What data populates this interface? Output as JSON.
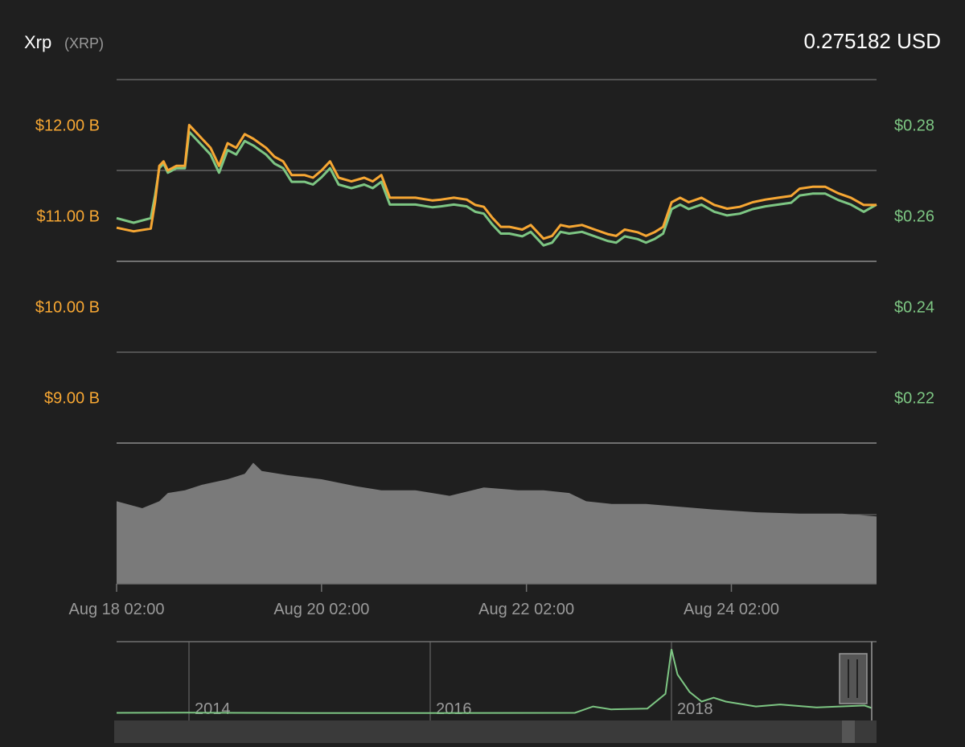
{
  "header": {
    "coin_name": "Xrp",
    "coin_symbol": "(XRP)",
    "price": "0.275182 USD"
  },
  "colors": {
    "background": "#1f1f1f",
    "market_cap": "#f7a733",
    "price": "#7dc683",
    "volume": "#7a7a7a",
    "grid": "#707070",
    "axis_text": "#9a9a9a",
    "navigator_bg": "#3a3a3a"
  },
  "chart_data": [
    {
      "type": "line",
      "x_ticks": [
        "Aug 18 02:00",
        "Aug 20 02:00",
        "Aug 22 02:00",
        "Aug 24 02:00"
      ],
      "x_range_hours": [
        0,
        178
      ],
      "y_left": {
        "ticks": [
          "$12.00 B",
          "$11.00 B",
          "$10.00 B",
          "$9.00 B"
        ],
        "range_billion_usd": [
          8.5,
          12.5
        ]
      },
      "y_right": {
        "ticks": [
          "$0.28",
          "$0.26",
          "$0.24",
          "$0.22"
        ],
        "range_usd": [
          0.21,
          0.29
        ]
      },
      "grid": true,
      "series": [
        {
          "axis": "left",
          "points": [
            [
              0,
              10.87
            ],
            [
              4,
              10.83
            ],
            [
              8,
              10.86
            ],
            [
              9,
              11.15
            ],
            [
              10,
              11.55
            ],
            [
              11,
              11.6
            ],
            [
              12,
              11.5
            ],
            [
              14,
              11.55
            ],
            [
              16,
              11.55
            ],
            [
              17,
              12.0
            ],
            [
              18,
              11.95
            ],
            [
              20,
              11.85
            ],
            [
              22,
              11.75
            ],
            [
              24,
              11.55
            ],
            [
              26,
              11.8
            ],
            [
              28,
              11.75
            ],
            [
              30,
              11.9
            ],
            [
              32,
              11.85
            ],
            [
              35,
              11.75
            ],
            [
              37,
              11.65
            ],
            [
              39,
              11.6
            ],
            [
              41,
              11.45
            ],
            [
              44,
              11.45
            ],
            [
              46,
              11.42
            ],
            [
              48,
              11.5
            ],
            [
              50,
              11.6
            ],
            [
              52,
              11.42
            ],
            [
              55,
              11.38
            ],
            [
              58,
              11.42
            ],
            [
              60,
              11.38
            ],
            [
              62,
              11.45
            ],
            [
              64,
              11.2
            ],
            [
              67,
              11.2
            ],
            [
              70,
              11.2
            ],
            [
              74,
              11.17
            ],
            [
              76,
              11.18
            ],
            [
              79,
              11.2
            ],
            [
              82,
              11.18
            ],
            [
              84,
              11.12
            ],
            [
              86,
              11.1
            ],
            [
              88,
              10.98
            ],
            [
              90,
              10.88
            ],
            [
              92,
              10.88
            ],
            [
              95,
              10.85
            ],
            [
              97,
              10.9
            ],
            [
              100,
              10.75
            ],
            [
              102,
              10.78
            ],
            [
              104,
              10.9
            ],
            [
              106,
              10.88
            ],
            [
              109,
              10.9
            ],
            [
              112,
              10.85
            ],
            [
              115,
              10.8
            ],
            [
              117,
              10.78
            ],
            [
              119,
              10.85
            ],
            [
              122,
              10.82
            ],
            [
              124,
              10.78
            ],
            [
              126,
              10.82
            ],
            [
              128,
              10.88
            ],
            [
              130,
              11.15
            ],
            [
              132,
              11.2
            ],
            [
              134,
              11.15
            ],
            [
              137,
              11.2
            ],
            [
              140,
              11.12
            ],
            [
              143,
              11.08
            ],
            [
              146,
              11.1
            ],
            [
              149,
              11.15
            ],
            [
              152,
              11.18
            ],
            [
              155,
              11.2
            ],
            [
              158,
              11.22
            ],
            [
              160,
              11.3
            ],
            [
              163,
              11.32
            ],
            [
              166,
              11.32
            ],
            [
              169,
              11.25
            ],
            [
              172,
              11.2
            ],
            [
              175,
              11.12
            ],
            [
              178,
              11.12
            ]
          ]
        },
        {
          "axis": "right",
          "points": [
            [
              0,
              0.2595
            ],
            [
              4,
              0.2585
            ],
            [
              8,
              0.2595
            ],
            [
              9,
              0.2645
            ],
            [
              10,
              0.2705
            ],
            [
              11,
              0.2715
            ],
            [
              12,
              0.2695
            ],
            [
              14,
              0.2705
            ],
            [
              16,
              0.2705
            ],
            [
              17,
              0.2785
            ],
            [
              18,
              0.2775
            ],
            [
              20,
              0.2755
            ],
            [
              22,
              0.2735
            ],
            [
              24,
              0.2695
            ],
            [
              26,
              0.2745
            ],
            [
              28,
              0.2735
            ],
            [
              30,
              0.2765
            ],
            [
              32,
              0.2755
            ],
            [
              35,
              0.2735
            ],
            [
              37,
              0.2715
            ],
            [
              39,
              0.2705
            ],
            [
              41,
              0.2675
            ],
            [
              44,
              0.2675
            ],
            [
              46,
              0.2669
            ],
            [
              48,
              0.2685
            ],
            [
              50,
              0.2705
            ],
            [
              52,
              0.2669
            ],
            [
              55,
              0.2661
            ],
            [
              58,
              0.2669
            ],
            [
              60,
              0.2661
            ],
            [
              62,
              0.2675
            ],
            [
              64,
              0.2625
            ],
            [
              67,
              0.2625
            ],
            [
              70,
              0.2625
            ],
            [
              74,
              0.2619
            ],
            [
              76,
              0.2621
            ],
            [
              79,
              0.2625
            ],
            [
              82,
              0.2621
            ],
            [
              84,
              0.2609
            ],
            [
              86,
              0.2605
            ],
            [
              88,
              0.2581
            ],
            [
              90,
              0.2561
            ],
            [
              92,
              0.2561
            ],
            [
              95,
              0.2555
            ],
            [
              97,
              0.2565
            ],
            [
              100,
              0.2535
            ],
            [
              102,
              0.2541
            ],
            [
              104,
              0.2565
            ],
            [
              106,
              0.2561
            ],
            [
              109,
              0.2565
            ],
            [
              112,
              0.2555
            ],
            [
              115,
              0.2545
            ],
            [
              117,
              0.2541
            ],
            [
              119,
              0.2555
            ],
            [
              122,
              0.2549
            ],
            [
              124,
              0.2541
            ],
            [
              126,
              0.2549
            ],
            [
              128,
              0.2561
            ],
            [
              130,
              0.2615
            ],
            [
              132,
              0.2625
            ],
            [
              134,
              0.2615
            ],
            [
              137,
              0.2625
            ],
            [
              140,
              0.2609
            ],
            [
              143,
              0.2601
            ],
            [
              146,
              0.2605
            ],
            [
              149,
              0.2615
            ],
            [
              152,
              0.2621
            ],
            [
              155,
              0.2625
            ],
            [
              158,
              0.2629
            ],
            [
              160,
              0.2645
            ],
            [
              163,
              0.2649
            ],
            [
              166,
              0.2649
            ],
            [
              169,
              0.2635
            ],
            [
              172,
              0.2625
            ],
            [
              175,
              0.2609
            ],
            [
              178,
              0.2625
            ]
          ]
        }
      ]
    },
    {
      "type": "area",
      "x_range_hours": [
        0,
        178
      ],
      "y_range_relative": [
        0,
        1
      ],
      "points": [
        [
          0,
          0.6
        ],
        [
          6,
          0.55
        ],
        [
          10,
          0.6
        ],
        [
          12,
          0.66
        ],
        [
          16,
          0.68
        ],
        [
          20,
          0.72
        ],
        [
          26,
          0.76
        ],
        [
          30,
          0.8
        ],
        [
          32,
          0.88
        ],
        [
          34,
          0.82
        ],
        [
          40,
          0.79
        ],
        [
          48,
          0.76
        ],
        [
          56,
          0.71
        ],
        [
          62,
          0.68
        ],
        [
          70,
          0.68
        ],
        [
          78,
          0.64
        ],
        [
          86,
          0.7
        ],
        [
          94,
          0.68
        ],
        [
          100,
          0.68
        ],
        [
          106,
          0.66
        ],
        [
          110,
          0.6
        ],
        [
          116,
          0.58
        ],
        [
          124,
          0.58
        ],
        [
          132,
          0.56
        ],
        [
          140,
          0.54
        ],
        [
          150,
          0.52
        ],
        [
          160,
          0.51
        ],
        [
          170,
          0.51
        ],
        [
          178,
          0.49
        ]
      ]
    },
    {
      "type": "line",
      "x_ticks": [
        "2014",
        "2016",
        "2018"
      ],
      "x_range_years": [
        2013.4,
        2019.7
      ],
      "y_range_usd": [
        0,
        3.4
      ],
      "points": [
        [
          2013.4,
          0.02
        ],
        [
          2014.0,
          0.03
        ],
        [
          2015.0,
          0.01
        ],
        [
          2016.0,
          0.008
        ],
        [
          2017.2,
          0.02
        ],
        [
          2017.35,
          0.35
        ],
        [
          2017.5,
          0.2
        ],
        [
          2017.8,
          0.24
        ],
        [
          2017.95,
          1.0
        ],
        [
          2018.0,
          3.3
        ],
        [
          2018.05,
          2.0
        ],
        [
          2018.15,
          1.1
        ],
        [
          2018.25,
          0.6
        ],
        [
          2018.35,
          0.8
        ],
        [
          2018.45,
          0.6
        ],
        [
          2018.7,
          0.35
        ],
        [
          2018.9,
          0.45
        ],
        [
          2019.2,
          0.3
        ],
        [
          2019.6,
          0.4
        ],
        [
          2019.66,
          0.27
        ]
      ]
    }
  ]
}
